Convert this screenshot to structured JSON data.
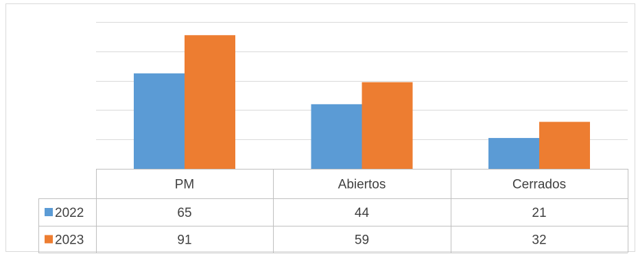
{
  "chart_data": {
    "type": "bar",
    "title": "",
    "xlabel": "",
    "ylabel": "",
    "categories": [
      "PM",
      "Abiertos",
      "Cerrados"
    ],
    "series": [
      {
        "name": "2022",
        "values": [
          65,
          44,
          21
        ],
        "color": "#5b9bd5"
      },
      {
        "name": "2023",
        "values": [
          91,
          59,
          32
        ],
        "color": "#ed7d31"
      }
    ],
    "ylim": [
      0,
      100
    ],
    "y_ticks": [
      0,
      20,
      40,
      60,
      80,
      100
    ],
    "y_tick_labels_visible": false,
    "grid": true,
    "legend": "data-table"
  }
}
